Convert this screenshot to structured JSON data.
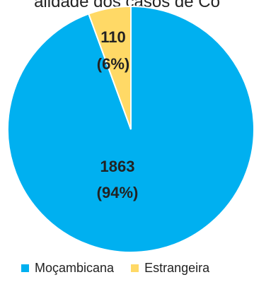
{
  "chart_data": {
    "type": "pie",
    "title": "alidade dos casos de Co",
    "categories": [
      "Moçambicana",
      "Estrangeira"
    ],
    "values": [
      1863,
      110
    ],
    "percent_labels": [
      "(94%)",
      "(6%)"
    ],
    "value_labels": [
      "1863",
      "110"
    ],
    "colors": [
      "#00B0F0",
      "#FFD966"
    ],
    "legend": {
      "position": "bottom",
      "items": [
        {
          "label": "Moçambicana",
          "color": "#00B0F0"
        },
        {
          "label": "Estrangeira",
          "color": "#FFD966"
        }
      ]
    }
  }
}
